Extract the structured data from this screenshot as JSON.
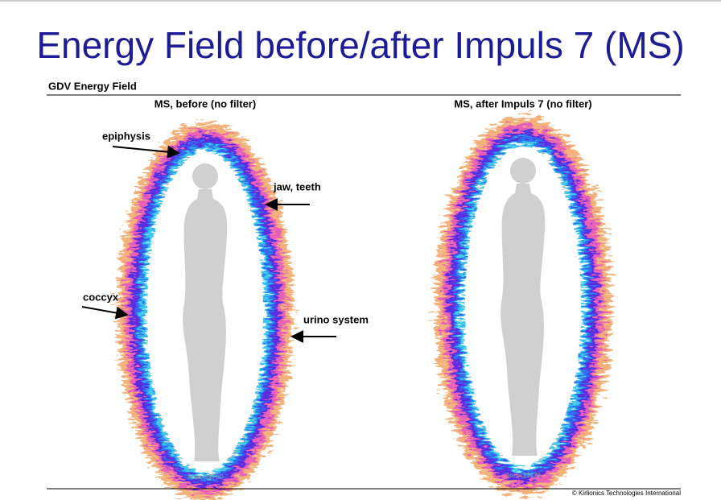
{
  "title": "Energy Field before/after Impuls 7 (MS)",
  "section_title": "GDV Energy Field",
  "panels": [
    {
      "caption": "MS, before (no filter)",
      "area": "Area=19700"
    },
    {
      "caption": "MS, after Impuls 7 (no filter)",
      "area": "Area=21478"
    }
  ],
  "annotations": [
    "epiphysis",
    "jaw, teeth",
    "coccyx",
    "urino system"
  ],
  "footer": "© Kirlionics Technologies International"
}
